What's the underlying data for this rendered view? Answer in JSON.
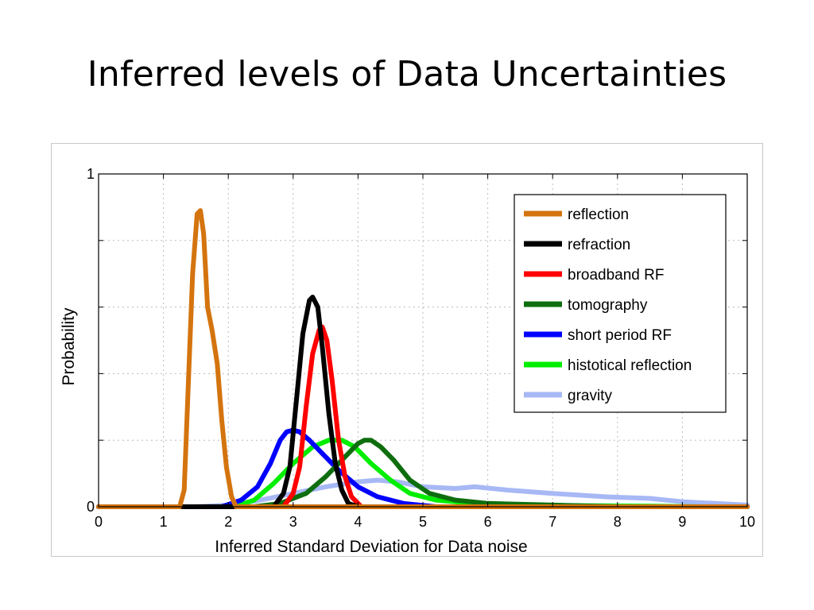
{
  "slide": {
    "title": "Inferred levels of Data Uncertainties"
  },
  "chart_data": {
    "type": "line",
    "title": "",
    "xlabel": "Inferred Standard Deviation for Data noise",
    "ylabel": "Probability",
    "xlim": [
      0,
      10
    ],
    "ylim": [
      0,
      1
    ],
    "x_ticks": [
      0,
      1,
      2,
      3,
      4,
      5,
      6,
      7,
      8,
      9,
      10
    ],
    "y_ticks": [
      0,
      1
    ],
    "grid": true,
    "legend_position": "top-right",
    "series": [
      {
        "name": "reflection",
        "color": "#D4740E",
        "points": [
          [
            0,
            0
          ],
          [
            1.25,
            0
          ],
          [
            1.32,
            0.05
          ],
          [
            1.38,
            0.35
          ],
          [
            1.45,
            0.7
          ],
          [
            1.52,
            0.88
          ],
          [
            1.57,
            0.89
          ],
          [
            1.62,
            0.82
          ],
          [
            1.68,
            0.6
          ],
          [
            1.75,
            0.53
          ],
          [
            1.83,
            0.43
          ],
          [
            1.9,
            0.26
          ],
          [
            1.97,
            0.12
          ],
          [
            2.05,
            0.03
          ],
          [
            2.12,
            0
          ],
          [
            10,
            0
          ]
        ]
      },
      {
        "name": "refraction",
        "color": "#000000",
        "points": [
          [
            0,
            0
          ],
          [
            2.7,
            0
          ],
          [
            2.85,
            0.04
          ],
          [
            2.95,
            0.12
          ],
          [
            3.05,
            0.32
          ],
          [
            3.15,
            0.52
          ],
          [
            3.25,
            0.62
          ],
          [
            3.3,
            0.63
          ],
          [
            3.38,
            0.6
          ],
          [
            3.45,
            0.48
          ],
          [
            3.55,
            0.28
          ],
          [
            3.65,
            0.13
          ],
          [
            3.75,
            0.05
          ],
          [
            3.85,
            0.01
          ],
          [
            4.0,
            0
          ],
          [
            10,
            0
          ]
        ]
      },
      {
        "name": "broadband RF",
        "color": "#FF0000",
        "points": [
          [
            0,
            0
          ],
          [
            2.85,
            0
          ],
          [
            3.0,
            0.04
          ],
          [
            3.1,
            0.12
          ],
          [
            3.2,
            0.3
          ],
          [
            3.3,
            0.46
          ],
          [
            3.4,
            0.53
          ],
          [
            3.45,
            0.54
          ],
          [
            3.52,
            0.5
          ],
          [
            3.6,
            0.38
          ],
          [
            3.7,
            0.2
          ],
          [
            3.8,
            0.09
          ],
          [
            3.9,
            0.03
          ],
          [
            4.05,
            0
          ],
          [
            10,
            0
          ]
        ]
      },
      {
        "name": "tomography",
        "color": "#0E6E0E",
        "points": [
          [
            0,
            0
          ],
          [
            2.4,
            0
          ],
          [
            2.8,
            0.01
          ],
          [
            3.2,
            0.04
          ],
          [
            3.5,
            0.09
          ],
          [
            3.8,
            0.15
          ],
          [
            4.0,
            0.19
          ],
          [
            4.1,
            0.2
          ],
          [
            4.2,
            0.2
          ],
          [
            4.35,
            0.18
          ],
          [
            4.55,
            0.14
          ],
          [
            4.8,
            0.08
          ],
          [
            5.1,
            0.04
          ],
          [
            5.5,
            0.02
          ],
          [
            6.0,
            0.01
          ],
          [
            7.0,
            0.005
          ],
          [
            8.0,
            0
          ],
          [
            10,
            0
          ]
        ]
      },
      {
        "name": "short period RF",
        "color": "#0000FF",
        "points": [
          [
            0,
            0
          ],
          [
            1.9,
            0
          ],
          [
            2.2,
            0.02
          ],
          [
            2.45,
            0.06
          ],
          [
            2.65,
            0.13
          ],
          [
            2.8,
            0.2
          ],
          [
            2.9,
            0.225
          ],
          [
            3.0,
            0.23
          ],
          [
            3.1,
            0.225
          ],
          [
            3.25,
            0.2
          ],
          [
            3.45,
            0.16
          ],
          [
            3.7,
            0.11
          ],
          [
            4.0,
            0.06
          ],
          [
            4.3,
            0.03
          ],
          [
            4.7,
            0.01
          ],
          [
            5.2,
            0
          ],
          [
            10,
            0
          ]
        ]
      },
      {
        "name": "histotical reflection",
        "color": "#00EE00",
        "points": [
          [
            0,
            0
          ],
          [
            2.1,
            0
          ],
          [
            2.4,
            0.02
          ],
          [
            2.7,
            0.07
          ],
          [
            3.0,
            0.13
          ],
          [
            3.3,
            0.18
          ],
          [
            3.55,
            0.2
          ],
          [
            3.75,
            0.2
          ],
          [
            3.95,
            0.18
          ],
          [
            4.2,
            0.13
          ],
          [
            4.5,
            0.08
          ],
          [
            4.8,
            0.04
          ],
          [
            5.2,
            0.02
          ],
          [
            5.8,
            0.01
          ],
          [
            6.5,
            0.005
          ],
          [
            7.5,
            0.003
          ],
          [
            8.5,
            0.002
          ],
          [
            9.3,
            0
          ],
          [
            10,
            0
          ]
        ]
      },
      {
        "name": "gravity",
        "color": "#A7B8F5",
        "points": [
          [
            0,
            0
          ],
          [
            1.5,
            0
          ],
          [
            2.0,
            0.005
          ],
          [
            2.5,
            0.02
          ],
          [
            3.0,
            0.04
          ],
          [
            3.5,
            0.06
          ],
          [
            4.0,
            0.075
          ],
          [
            4.3,
            0.08
          ],
          [
            4.6,
            0.075
          ],
          [
            5.0,
            0.06
          ],
          [
            5.5,
            0.055
          ],
          [
            5.8,
            0.06
          ],
          [
            6.3,
            0.05
          ],
          [
            7.0,
            0.04
          ],
          [
            7.8,
            0.03
          ],
          [
            8.5,
            0.025
          ],
          [
            9.0,
            0.015
          ],
          [
            9.5,
            0.01
          ],
          [
            10,
            0.005
          ]
        ]
      }
    ]
  }
}
